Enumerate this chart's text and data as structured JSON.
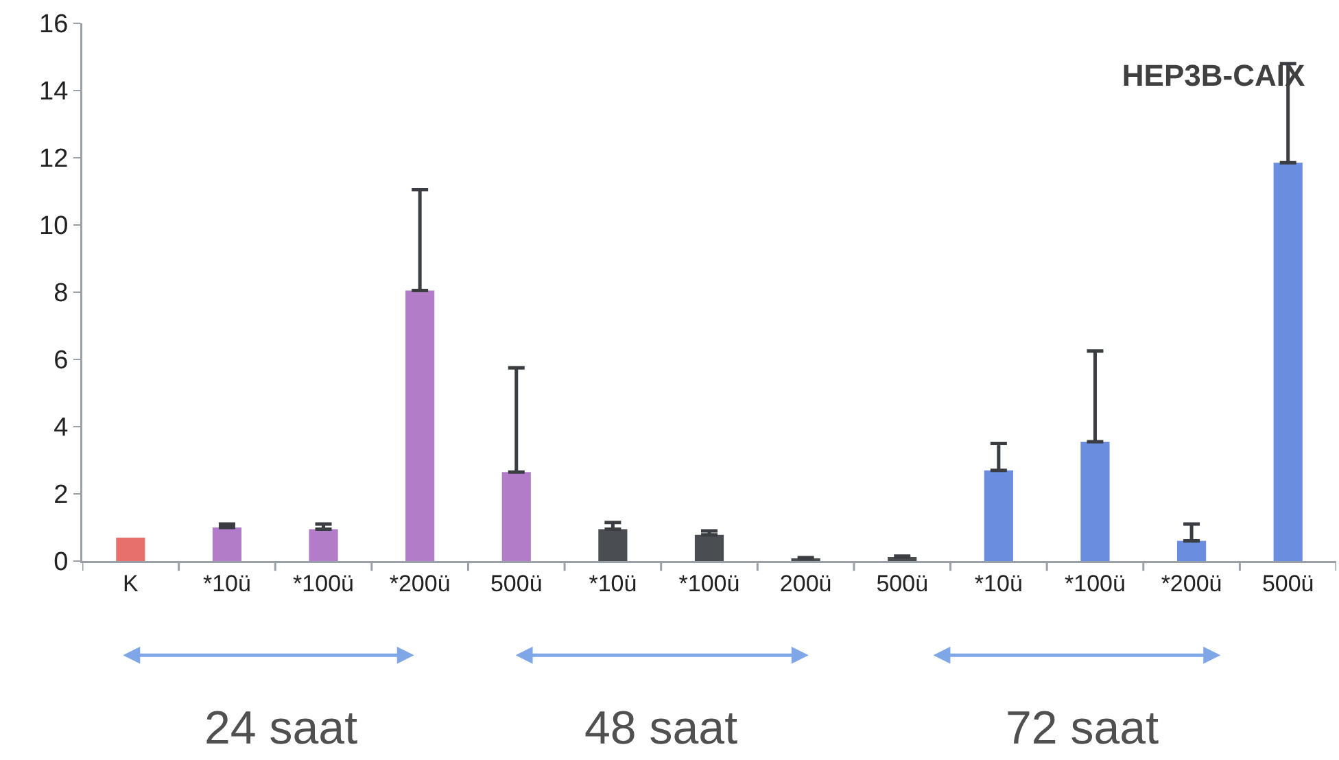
{
  "chart_data": {
    "type": "bar",
    "title": "HEP3B-CAIX",
    "categories": [
      "K",
      "*10ü",
      "*100ü",
      "*200ü",
      "500ü",
      "*10ü",
      "*100ü",
      "200ü",
      "500ü",
      "*10ü",
      "*100ü",
      "*200ü",
      "500ü"
    ],
    "values": [
      0.7,
      1.0,
      0.95,
      8.05,
      2.65,
      0.95,
      0.78,
      0.08,
      0.12,
      2.7,
      3.55,
      0.6,
      11.85
    ],
    "colors": [
      "#e8706a",
      "#b37cc8",
      "#b37cc8",
      "#b37cc8",
      "#b37cc8",
      "#4a4d52",
      "#4a4d52",
      "#4a4d52",
      "#4a4d52",
      "#6a8de0",
      "#6a8de0",
      "#6a8de0",
      "#6a8de0"
    ],
    "errors": [
      null,
      [
        1.0,
        1.1
      ],
      [
        0.95,
        1.1
      ],
      [
        8.05,
        11.05
      ],
      [
        2.65,
        5.75
      ],
      [
        0.95,
        1.15
      ],
      [
        0.78,
        0.9
      ],
      [
        0.08,
        0.1
      ],
      [
        0.12,
        0.15
      ],
      [
        2.7,
        3.5
      ],
      [
        3.55,
        6.25
      ],
      [
        0.6,
        1.1
      ],
      [
        11.85,
        14.8
      ]
    ],
    "ylim": [
      0,
      16
    ],
    "yticks": [
      0,
      2,
      4,
      6,
      8,
      10,
      12,
      14,
      16
    ],
    "grid": false,
    "annotations": [
      "24 saat",
      "48 saat",
      "72 saat"
    ]
  }
}
